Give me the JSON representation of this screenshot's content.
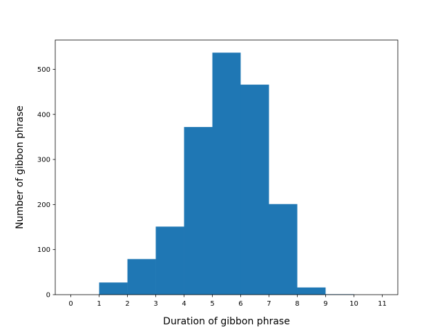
{
  "chart_data": {
    "type": "bar",
    "subtype": "histogram",
    "title": "",
    "xlabel": "Duration of gibbon phrase",
    "ylabel": "Number of gibbon phrase",
    "bin_edges": [
      0,
      1,
      2,
      3,
      4,
      5,
      6,
      7,
      8,
      9,
      10,
      11
    ],
    "values": [
      0,
      27,
      79,
      151,
      372,
      537,
      466,
      201,
      16,
      1,
      0
    ],
    "xlim": [
      -0.55,
      11.55
    ],
    "ylim": [
      0,
      565
    ],
    "xticks": [
      "0",
      "1",
      "2",
      "3",
      "4",
      "5",
      "6",
      "7",
      "8",
      "9",
      "10",
      "11"
    ],
    "yticks": [
      "0",
      "100",
      "200",
      "300",
      "400",
      "500"
    ],
    "bar_color": "#1f77b4",
    "grid": false,
    "legend": "none"
  }
}
